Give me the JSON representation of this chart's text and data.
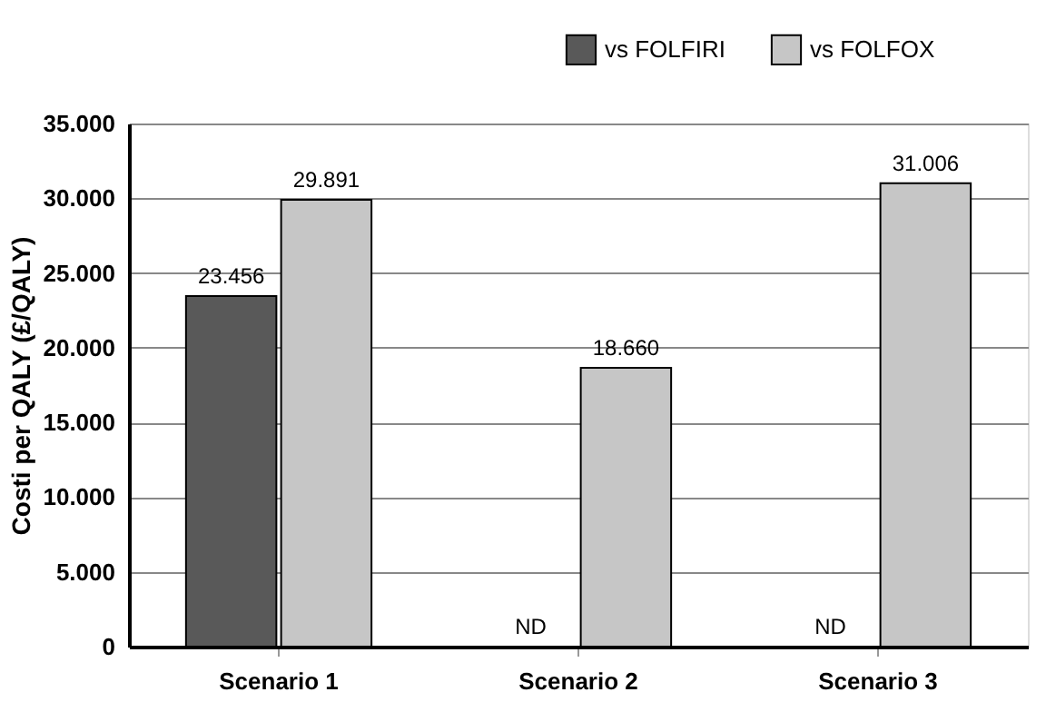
{
  "chart_data": {
    "type": "bar",
    "ylabel": "Costi per QALY (£/QALY)",
    "categories": [
      "Scenario 1",
      "Scenario 2",
      "Scenario 3"
    ],
    "series": [
      {
        "name": "vs FOLFIRI",
        "color": "#595959",
        "values": [
          23456,
          null,
          null
        ],
        "value_labels": [
          "23.456",
          "ND",
          "ND"
        ]
      },
      {
        "name": "vs FOLFOX",
        "color": "#c6c6c6",
        "values": [
          29891,
          18660,
          31006
        ],
        "value_labels": [
          "29.891",
          "18.660",
          "31.006"
        ]
      }
    ],
    "ylim": [
      0,
      35000
    ],
    "yticks": [
      {
        "value": 0,
        "label": "0"
      },
      {
        "value": 5000,
        "label": "5.000"
      },
      {
        "value": 10000,
        "label": "10.000"
      },
      {
        "value": 15000,
        "label": "15.000"
      },
      {
        "value": 20000,
        "label": "20.000"
      },
      {
        "value": 25000,
        "label": "25.000"
      },
      {
        "value": 30000,
        "label": "30.000"
      },
      {
        "value": 35000,
        "label": "35.000"
      }
    ],
    "grid": "y",
    "legend": "top right"
  }
}
